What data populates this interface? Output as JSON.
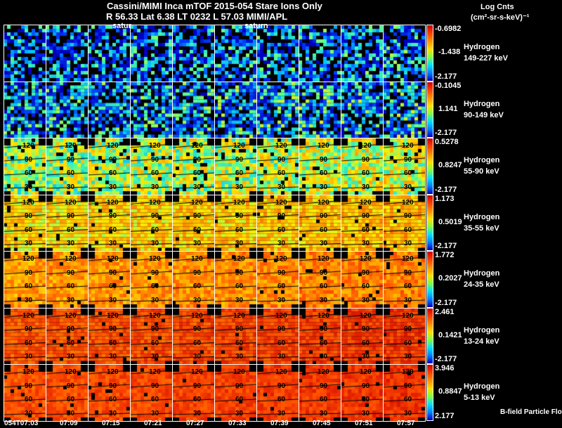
{
  "header": {
    "line1": "Cassini/MIMI Inca mTOF  2015-054   Stare   Ions Only",
    "line2": "R        56.33 Lat 6.38 LT 0232 L        57.03  MIMI/APL"
  },
  "units": {
    "line1": "Log Cnts",
    "line2": "(cm²-sr-s-keV)⁻¹"
  },
  "overlay_labels": [
    "satur",
    "saturn"
  ],
  "footer_label": "B-field Particle Flow",
  "chart_data": {
    "type": "heatmap",
    "title": "Cassini/MIMI Inca mTOF 2015-054 Stare Ions Only",
    "time_ticks": [
      "054T07:03",
      "07:09",
      "07:15",
      "07:21",
      "07:27",
      "07:33",
      "07:39",
      "07:45",
      "07:51",
      "07:57"
    ],
    "contour_labels": [
      "120",
      "90",
      "60",
      "30"
    ],
    "rows": [
      {
        "species": "Hydrogen",
        "energy": "149-227 keV",
        "cbar": [
          "-0.6982",
          "-1.438",
          "-2.177"
        ]
      },
      {
        "species": "Hydrogen",
        "energy": "90-149 keV",
        "cbar": [
          "-0.1045",
          "1.141",
          "-2.177"
        ]
      },
      {
        "species": "Hydrogen",
        "energy": "55-90 keV",
        "cbar": [
          "0.5278",
          "0.8247",
          "-2.177"
        ]
      },
      {
        "species": "Hydrogen",
        "energy": "35-55 keV",
        "cbar": [
          "1.173",
          "0.5019",
          "-2.177"
        ]
      },
      {
        "species": "Hydrogen",
        "energy": "24-35 keV",
        "cbar": [
          "1.772",
          "0.2027",
          "-2.177"
        ]
      },
      {
        "species": "Hydrogen",
        "energy": "13-24 keV",
        "cbar": [
          "2.461",
          "0.1421",
          "-2.177"
        ]
      },
      {
        "species": "Hydrogen",
        "energy": "5-13 keV",
        "cbar": [
          "3.946",
          "0.8847",
          "2.177"
        ]
      }
    ]
  }
}
